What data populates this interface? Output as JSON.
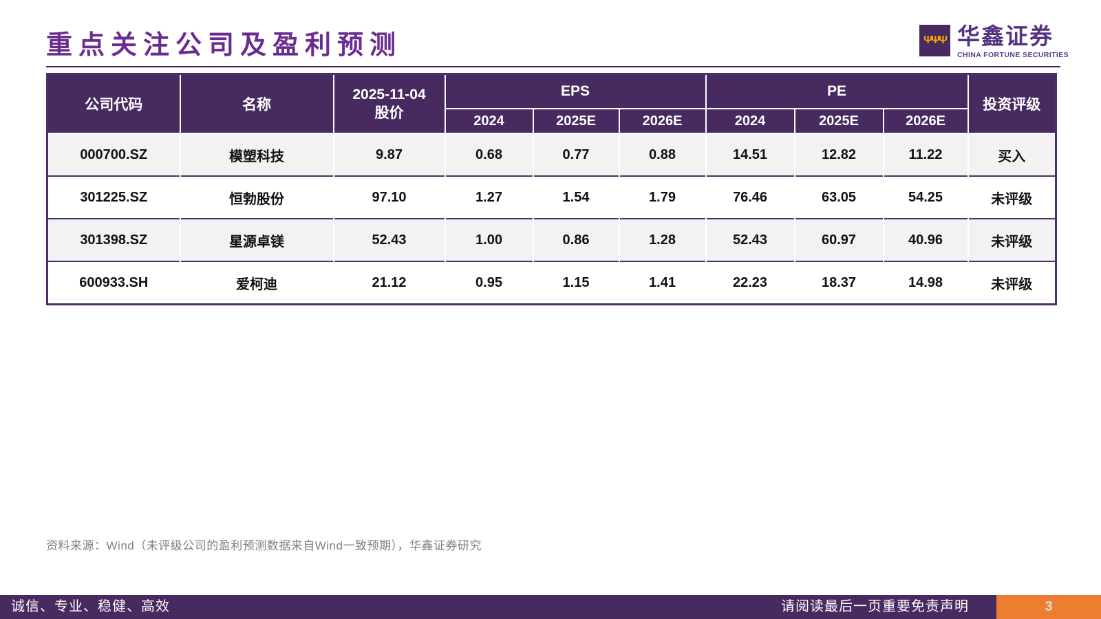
{
  "header": {
    "title": "重点关注公司及盈利预测",
    "brand_cn": "华鑫证券",
    "brand_en": "CHINA FORTUNE SECURITIES",
    "logo_glyph": "ΨΨΨ"
  },
  "table": {
    "header": {
      "code": "公司代码",
      "name": "名称",
      "price_label": "2025-11-04\n股价",
      "eps_group": "EPS",
      "pe_group": "PE",
      "rating": "投资评级",
      "years": [
        "2024",
        "2025E",
        "2026E",
        "2024",
        "2025E",
        "2026E"
      ]
    },
    "rows": [
      {
        "cells": [
          "000700.SZ",
          "模塑科技",
          "9.87",
          "0.68",
          "0.77",
          "0.88",
          "14.51",
          "12.82",
          "11.22",
          "买入"
        ]
      },
      {
        "cells": [
          "301225.SZ",
          "恒勃股份",
          "97.10",
          "1.27",
          "1.54",
          "1.79",
          "76.46",
          "63.05",
          "54.25",
          "未评级"
        ]
      },
      {
        "cells": [
          "301398.SZ",
          "星源卓镁",
          "52.43",
          "1.00",
          "0.86",
          "1.28",
          "52.43",
          "60.97",
          "40.96",
          "未评级"
        ]
      },
      {
        "cells": [
          "600933.SH",
          "爱柯迪",
          "21.12",
          "0.95",
          "1.15",
          "1.41",
          "22.23",
          "18.37",
          "14.98",
          "未评级"
        ]
      }
    ]
  },
  "source_note": "资料来源：Wind（未评级公司的盈利预测数据来自Wind一致预期），华鑫证券研究",
  "footer": {
    "slogan": "诚信、专业、稳健、高效",
    "disclaimer": "请阅读最后一页重要免责声明",
    "page_number": "3"
  },
  "colors": {
    "purple_header": "#472A5F",
    "purple_title": "#6B2C90",
    "purple_border": "#4F2D66",
    "orange_accent": "#ED7D31",
    "row_alt": "#F2F2F2"
  }
}
